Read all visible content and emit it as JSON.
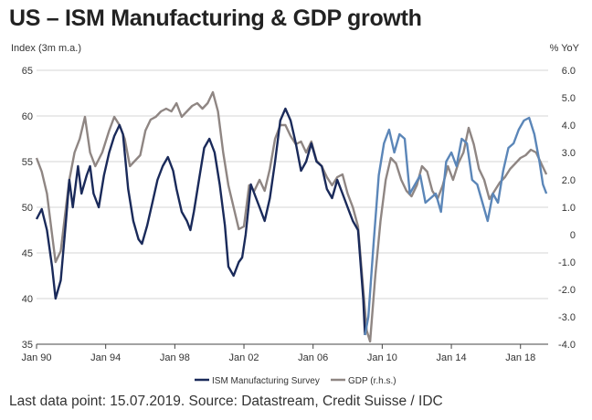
{
  "title": "US – ISM Manufacturing & GDP growth",
  "source": "Last data point: 15.07.2019. Source: Datastream, Credit Suisse / IDC",
  "chart_data": {
    "type": "line",
    "title": "US – ISM Manufacturing & GDP growth",
    "y_left_label": "Index (3m m.a.)",
    "y_right_label": "% YoY",
    "x_range": [
      1990.0,
      2019.6
    ],
    "x_ticks": [
      {
        "label": "Jan 90",
        "value": 1990
      },
      {
        "label": "Jan 94",
        "value": 1994
      },
      {
        "label": "Jan 98",
        "value": 1998
      },
      {
        "label": "Jan 02",
        "value": 2002
      },
      {
        "label": "Jan 06",
        "value": 2006
      },
      {
        "label": "Jan 10",
        "value": 2010
      },
      {
        "label": "Jan 14",
        "value": 2014
      },
      {
        "label": "Jan 18",
        "value": 2018
      }
    ],
    "y_left": {
      "min": 35,
      "max": 65,
      "ticks": [
        "35",
        "40",
        "45",
        "50",
        "55",
        "60",
        "65"
      ]
    },
    "y_right": {
      "min": -4.0,
      "max": 6.0,
      "ticks": [
        "-4.0",
        "-3.0",
        "-2.0",
        "-1.0",
        "0",
        "1.0",
        "2.0",
        "3.0",
        "4.0",
        "5.0",
        "6.0"
      ]
    },
    "series": [
      {
        "name": "ISM Manufacturing Survey",
        "axis": "left",
        "color": "#1a2a5a",
        "recent_color": "#5b86b8",
        "recent_from": 2009.0,
        "points": [
          [
            1990.0,
            48.7
          ],
          [
            1990.3,
            49.8
          ],
          [
            1990.6,
            47.5
          ],
          [
            1990.9,
            43.5
          ],
          [
            1991.1,
            40.0
          ],
          [
            1991.4,
            42.0
          ],
          [
            1991.7,
            48.5
          ],
          [
            1991.9,
            53.0
          ],
          [
            1992.1,
            50.0
          ],
          [
            1992.4,
            54.5
          ],
          [
            1992.6,
            51.5
          ],
          [
            1992.9,
            53.5
          ],
          [
            1993.1,
            54.5
          ],
          [
            1993.3,
            51.5
          ],
          [
            1993.6,
            50.0
          ],
          [
            1993.9,
            53.5
          ],
          [
            1994.2,
            56.0
          ],
          [
            1994.5,
            57.8
          ],
          [
            1994.8,
            59.0
          ],
          [
            1995.0,
            58.0
          ],
          [
            1995.3,
            52.0
          ],
          [
            1995.6,
            48.5
          ],
          [
            1995.9,
            46.5
          ],
          [
            1996.1,
            46.0
          ],
          [
            1996.4,
            48.0
          ],
          [
            1996.7,
            50.5
          ],
          [
            1997.0,
            53.0
          ],
          [
            1997.3,
            54.5
          ],
          [
            1997.6,
            55.5
          ],
          [
            1997.9,
            54.0
          ],
          [
            1998.1,
            52.0
          ],
          [
            1998.4,
            49.5
          ],
          [
            1998.7,
            48.5
          ],
          [
            1998.9,
            47.5
          ],
          [
            1999.1,
            49.5
          ],
          [
            1999.4,
            53.0
          ],
          [
            1999.7,
            56.5
          ],
          [
            2000.0,
            57.5
          ],
          [
            2000.3,
            56.0
          ],
          [
            2000.6,
            52.5
          ],
          [
            2000.9,
            48.0
          ],
          [
            2001.1,
            43.5
          ],
          [
            2001.4,
            42.5
          ],
          [
            2001.7,
            44.0
          ],
          [
            2001.9,
            44.5
          ],
          [
            2002.1,
            47.0
          ],
          [
            2002.4,
            52.5
          ],
          [
            2002.7,
            51.0
          ],
          [
            2002.9,
            50.0
          ],
          [
            2003.2,
            48.5
          ],
          [
            2003.5,
            51.0
          ],
          [
            2003.8,
            55.0
          ],
          [
            2004.1,
            59.5
          ],
          [
            2004.4,
            60.8
          ],
          [
            2004.7,
            59.5
          ],
          [
            2005.0,
            57.0
          ],
          [
            2005.3,
            54.0
          ],
          [
            2005.6,
            55.0
          ],
          [
            2005.9,
            57.0
          ],
          [
            2006.2,
            55.0
          ],
          [
            2006.5,
            54.5
          ],
          [
            2006.8,
            52.0
          ],
          [
            2007.1,
            51.0
          ],
          [
            2007.4,
            53.0
          ],
          [
            2007.7,
            51.5
          ],
          [
            2008.0,
            50.0
          ],
          [
            2008.3,
            48.5
          ],
          [
            2008.6,
            47.5
          ],
          [
            2008.9,
            40.0
          ],
          [
            2009.0,
            36.0
          ],
          [
            2009.2,
            38.0
          ],
          [
            2009.5,
            46.0
          ],
          [
            2009.8,
            53.5
          ],
          [
            2010.1,
            57.0
          ],
          [
            2010.4,
            58.5
          ],
          [
            2010.7,
            56.0
          ],
          [
            2011.0,
            58.0
          ],
          [
            2011.3,
            57.5
          ],
          [
            2011.6,
            51.5
          ],
          [
            2011.9,
            52.5
          ],
          [
            2012.2,
            53.5
          ],
          [
            2012.5,
            50.5
          ],
          [
            2012.8,
            51.0
          ],
          [
            2013.1,
            51.5
          ],
          [
            2013.4,
            49.5
          ],
          [
            2013.7,
            55.0
          ],
          [
            2014.0,
            56.0
          ],
          [
            2014.3,
            54.5
          ],
          [
            2014.6,
            57.5
          ],
          [
            2014.9,
            57.0
          ],
          [
            2015.2,
            53.0
          ],
          [
            2015.5,
            52.5
          ],
          [
            2015.8,
            50.5
          ],
          [
            2016.1,
            48.5
          ],
          [
            2016.4,
            51.5
          ],
          [
            2016.7,
            50.5
          ],
          [
            2017.0,
            54.0
          ],
          [
            2017.3,
            56.5
          ],
          [
            2017.6,
            57.0
          ],
          [
            2017.9,
            58.5
          ],
          [
            2018.2,
            59.5
          ],
          [
            2018.5,
            59.8
          ],
          [
            2018.8,
            58.0
          ],
          [
            2019.1,
            55.0
          ],
          [
            2019.3,
            52.5
          ],
          [
            2019.5,
            51.5
          ]
        ]
      },
      {
        "name": "GDP (r.h.s.)",
        "axis": "right",
        "color": "#8f8683",
        "points": [
          [
            1990.0,
            2.8
          ],
          [
            1990.3,
            2.3
          ],
          [
            1990.6,
            1.5
          ],
          [
            1990.9,
            0.0
          ],
          [
            1991.1,
            -1.0
          ],
          [
            1991.4,
            -0.6
          ],
          [
            1991.7,
            1.0
          ],
          [
            1991.9,
            2.0
          ],
          [
            1992.2,
            3.0
          ],
          [
            1992.5,
            3.5
          ],
          [
            1992.8,
            4.3
          ],
          [
            1993.1,
            3.0
          ],
          [
            1993.4,
            2.5
          ],
          [
            1993.8,
            3.0
          ],
          [
            1994.2,
            3.8
          ],
          [
            1994.5,
            4.3
          ],
          [
            1994.8,
            4.0
          ],
          [
            1995.1,
            3.5
          ],
          [
            1995.4,
            2.5
          ],
          [
            1995.7,
            2.7
          ],
          [
            1996.0,
            2.9
          ],
          [
            1996.3,
            3.8
          ],
          [
            1996.6,
            4.2
          ],
          [
            1996.9,
            4.3
          ],
          [
            1997.2,
            4.5
          ],
          [
            1997.5,
            4.6
          ],
          [
            1997.8,
            4.5
          ],
          [
            1998.1,
            4.8
          ],
          [
            1998.4,
            4.3
          ],
          [
            1998.7,
            4.5
          ],
          [
            1999.0,
            4.7
          ],
          [
            1999.3,
            4.8
          ],
          [
            1999.6,
            4.6
          ],
          [
            1999.9,
            4.8
          ],
          [
            2000.2,
            5.2
          ],
          [
            2000.5,
            4.5
          ],
          [
            2000.8,
            3.0
          ],
          [
            2001.1,
            1.8
          ],
          [
            2001.4,
            1.0
          ],
          [
            2001.7,
            0.2
          ],
          [
            2002.0,
            0.3
          ],
          [
            2002.3,
            1.8
          ],
          [
            2002.6,
            1.6
          ],
          [
            2002.9,
            2.0
          ],
          [
            2003.2,
            1.6
          ],
          [
            2003.5,
            2.4
          ],
          [
            2003.8,
            3.5
          ],
          [
            2004.1,
            4.0
          ],
          [
            2004.4,
            4.0
          ],
          [
            2004.7,
            3.6
          ],
          [
            2005.0,
            3.3
          ],
          [
            2005.3,
            3.4
          ],
          [
            2005.6,
            3.0
          ],
          [
            2005.9,
            3.4
          ],
          [
            2006.2,
            2.7
          ],
          [
            2006.5,
            2.5
          ],
          [
            2006.8,
            2.1
          ],
          [
            2007.1,
            1.8
          ],
          [
            2007.4,
            2.1
          ],
          [
            2007.7,
            2.2
          ],
          [
            2008.0,
            1.5
          ],
          [
            2008.3,
            1.0
          ],
          [
            2008.6,
            0.3
          ],
          [
            2008.9,
            -2.0
          ],
          [
            2009.1,
            -3.5
          ],
          [
            2009.3,
            -3.9
          ],
          [
            2009.6,
            -1.5
          ],
          [
            2009.9,
            0.5
          ],
          [
            2010.2,
            2.0
          ],
          [
            2010.5,
            2.8
          ],
          [
            2010.8,
            2.6
          ],
          [
            2011.1,
            2.0
          ],
          [
            2011.4,
            1.6
          ],
          [
            2011.7,
            1.4
          ],
          [
            2012.0,
            1.8
          ],
          [
            2012.3,
            2.5
          ],
          [
            2012.6,
            2.3
          ],
          [
            2012.9,
            1.6
          ],
          [
            2013.2,
            1.3
          ],
          [
            2013.5,
            1.8
          ],
          [
            2013.8,
            2.5
          ],
          [
            2014.1,
            2.0
          ],
          [
            2014.4,
            2.6
          ],
          [
            2014.7,
            3.0
          ],
          [
            2015.0,
            3.9
          ],
          [
            2015.3,
            3.3
          ],
          [
            2015.6,
            2.4
          ],
          [
            2015.9,
            2.0
          ],
          [
            2016.2,
            1.3
          ],
          [
            2016.5,
            1.6
          ],
          [
            2016.8,
            1.9
          ],
          [
            2017.1,
            2.1
          ],
          [
            2017.4,
            2.4
          ],
          [
            2017.7,
            2.6
          ],
          [
            2018.0,
            2.8
          ],
          [
            2018.3,
            2.9
          ],
          [
            2018.6,
            3.1
          ],
          [
            2018.9,
            3.0
          ],
          [
            2019.2,
            2.6
          ],
          [
            2019.5,
            2.2
          ]
        ]
      }
    ],
    "legend": {
      "placement": "bottom-center",
      "entries": [
        "ISM Manufacturing Survey",
        "GDP (r.h.s.)"
      ]
    }
  }
}
